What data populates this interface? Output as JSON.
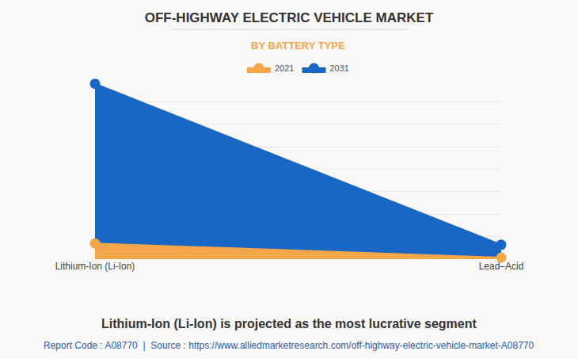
{
  "chart_data": {
    "type": "area",
    "title": "OFF-HIGHWAY ELECTRIC VEHICLE MARKET",
    "subtitle": "BY BATTERY TYPE",
    "caption": "Lithium-Ion (Li-Ion) is projected as the most lucrative segment",
    "source": "Report Code : A08770  |  Source : https://www.alliedmarketresearch.com/off-highway-electric-vehicle-market-A08770",
    "categories": [
      "Lithium-Ion (Li-Ion)",
      "Lead–Acid"
    ],
    "series": [
      {
        "name": "2021",
        "color": "#f4a64a",
        "values": [
          0.7,
          0.07
        ]
      },
      {
        "name": "2031",
        "color": "#1a66c4",
        "values": [
          7.8,
          0.64
        ]
      }
    ],
    "ylim": [
      0,
      8
    ],
    "yticks": [
      0,
      1,
      2,
      3,
      4,
      5,
      6,
      7,
      8
    ],
    "grid": true,
    "tick_labels": "x",
    "legend": "top",
    "marker": "circle"
  }
}
